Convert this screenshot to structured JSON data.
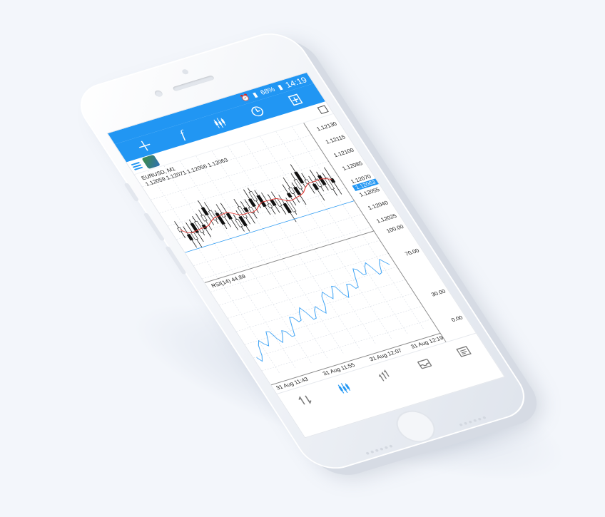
{
  "status": {
    "battery": "68%",
    "time": "14:19"
  },
  "toolbar": {
    "crosshair": "crosshair-icon",
    "indicators": "f",
    "chart_type": "candles-icon",
    "timeframe": "clock-icon",
    "new_order": "new-order-icon"
  },
  "chart": {
    "symbol": "EURUSD, M1",
    "ohlc": "1.12059 1.12071 1.12056 1.12063",
    "price_labels": [
      "1.12130",
      "1.12115",
      "1.12100",
      "1.12085",
      "1.12070",
      "1.12055",
      "1.12040",
      "1.12025"
    ],
    "current_price": "1.12063",
    "rsi_label": "RSI(14) 44.89",
    "rsi_levels": [
      "100.00",
      "70.00",
      "30.00",
      "0.00"
    ],
    "time_labels": [
      "31 Aug 11:43",
      "31 Aug 11:55",
      "31 Aug 12:07",
      "31 Aug 12:19"
    ],
    "colors": {
      "accent": "#2196f3",
      "ma_line": "#e53935",
      "rsi_line": "#42a5f5",
      "candle": "#111111"
    }
  },
  "bottom_nav": {
    "items": [
      "quotes-icon",
      "chart-icon",
      "trade-icon",
      "history-icon",
      "news-icon"
    ]
  }
}
